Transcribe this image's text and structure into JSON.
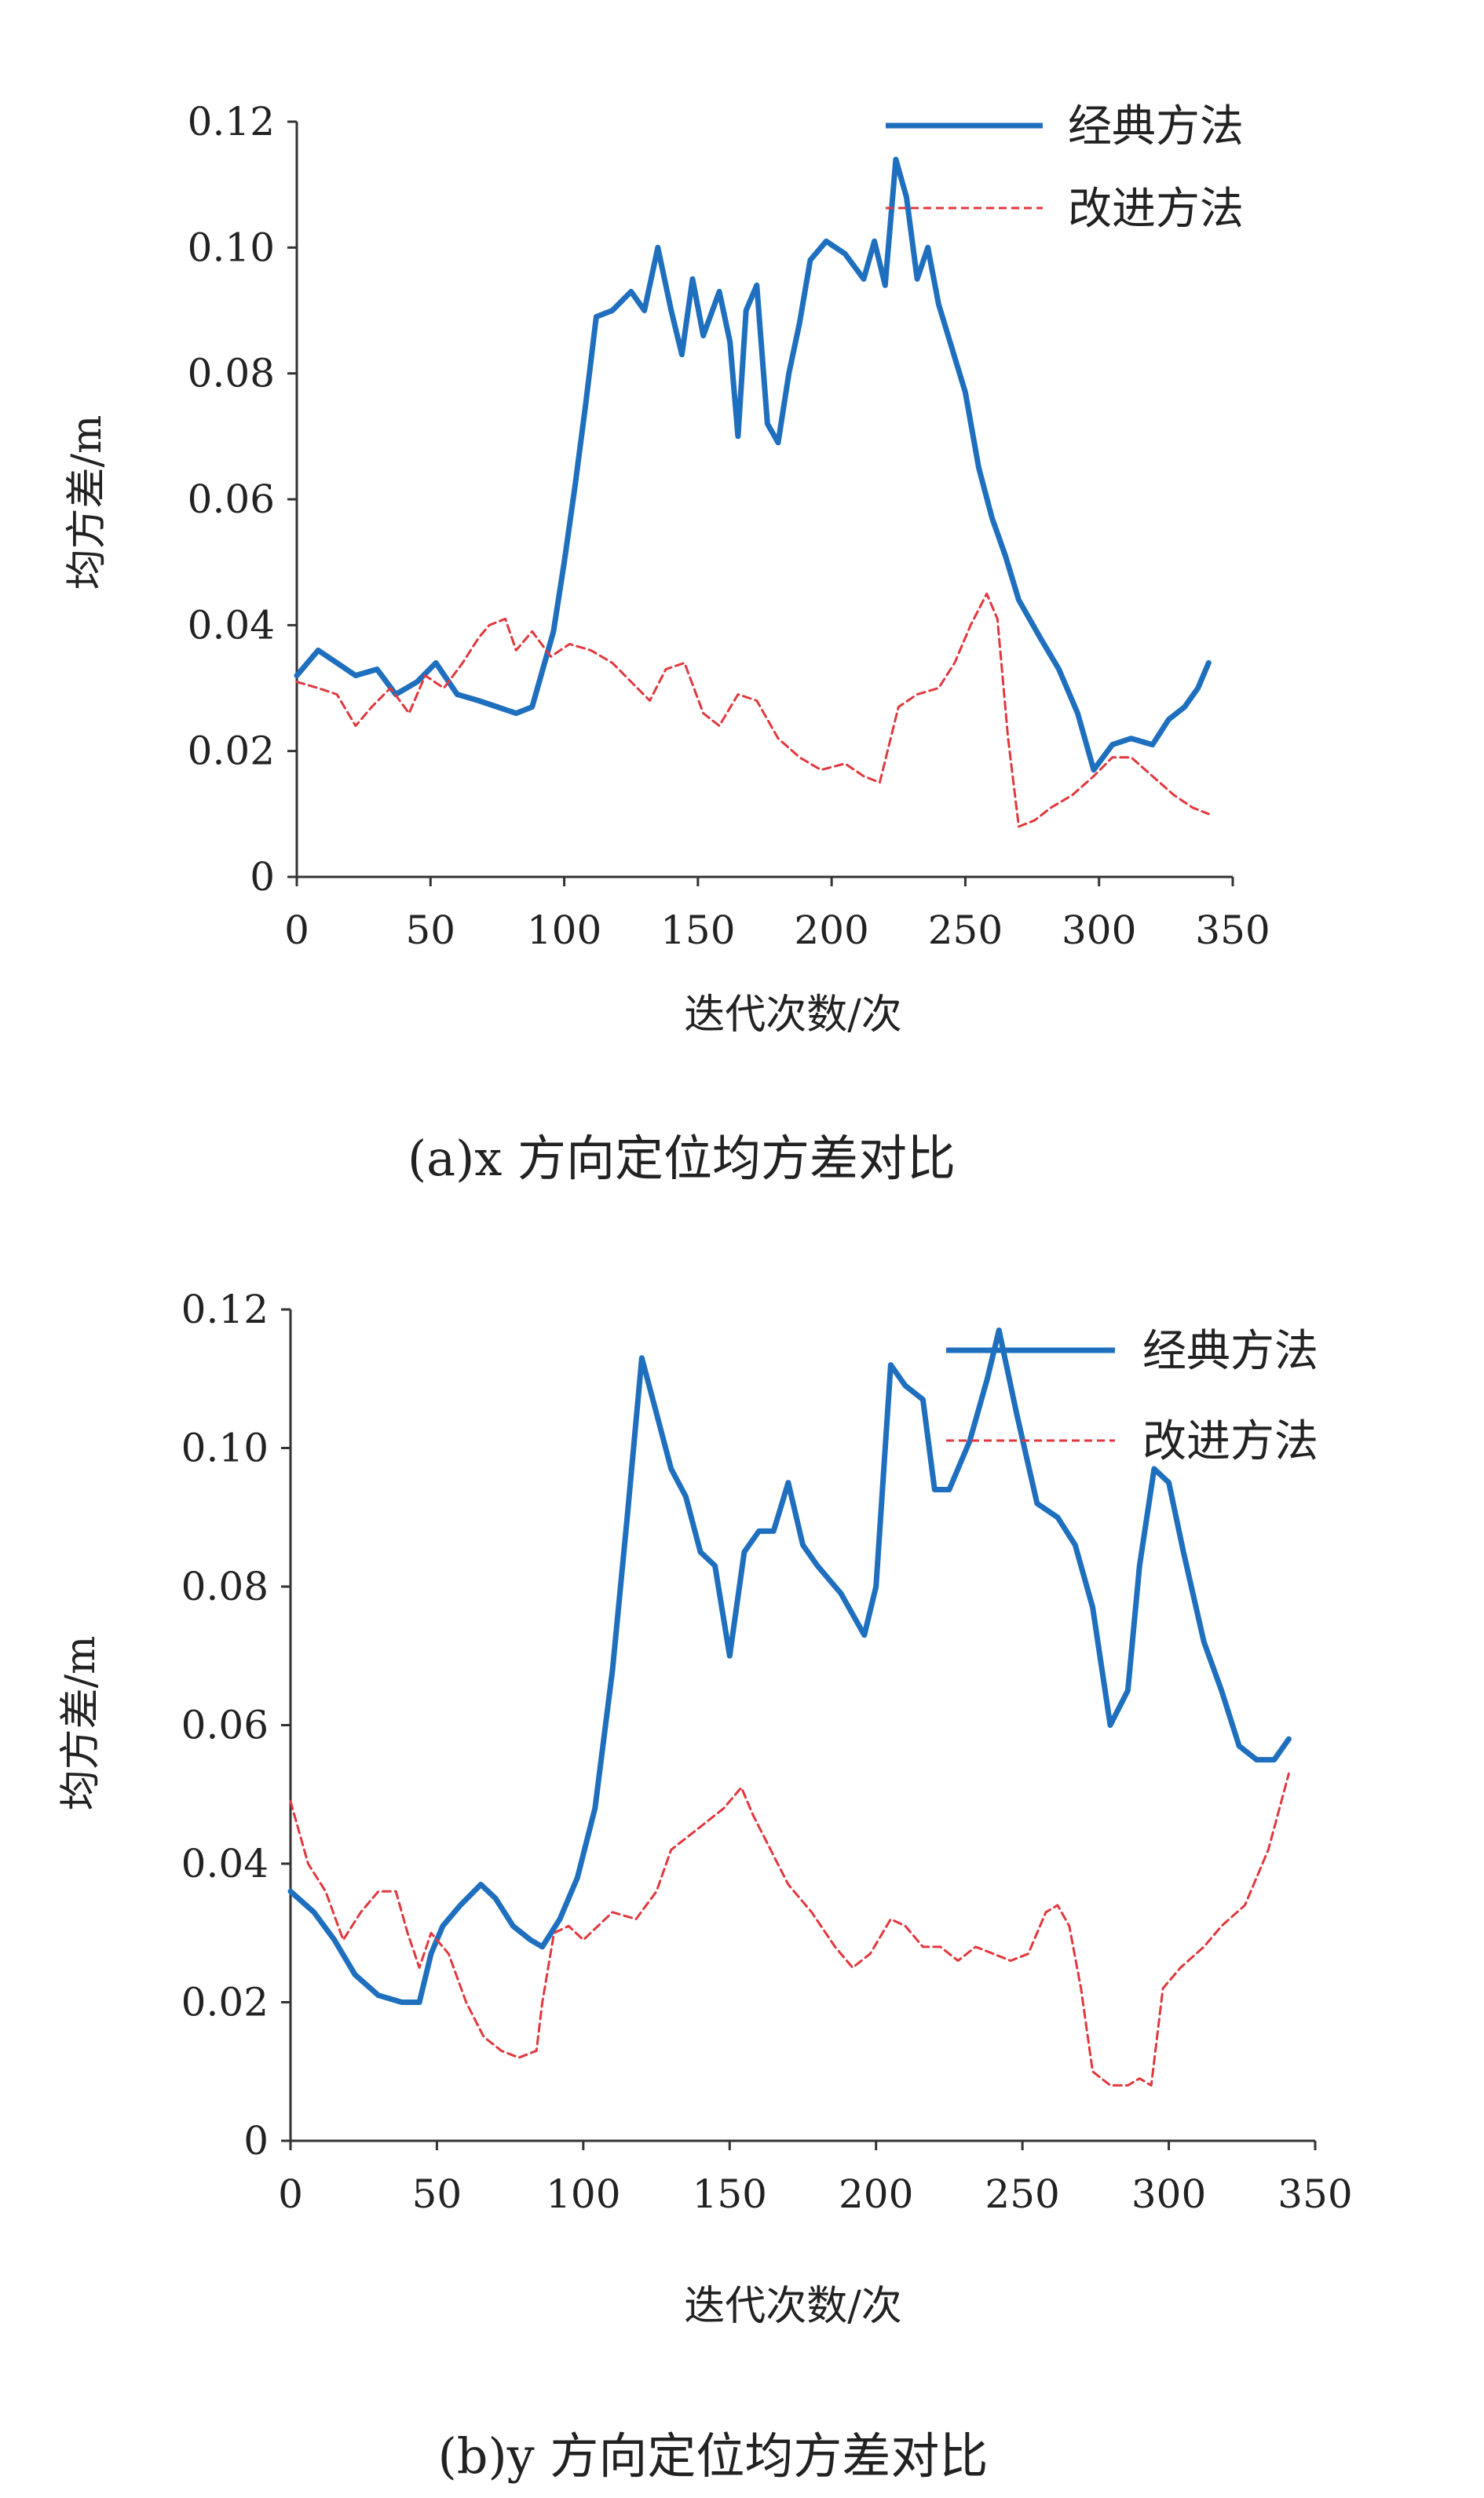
{
  "chart_data": [
    {
      "type": "line",
      "caption": "(a)x 方向定位均方差对比",
      "xlabel": "迭代次数/次",
      "ylabel": "均方差/m",
      "xlim": [
        0,
        350
      ],
      "ylim": [
        0,
        0.12
      ],
      "xticks": [
        0,
        50,
        100,
        150,
        200,
        250,
        300,
        350
      ],
      "xtick_labels": [
        "0",
        "50",
        "100",
        "150",
        "200",
        "250",
        "300",
        "350"
      ],
      "yticks": [
        0,
        0.02,
        0.04,
        0.06,
        0.08,
        0.1,
        0.12
      ],
      "ytick_labels": [
        "0",
        "0.02",
        "0.04",
        "0.06",
        "0.08",
        "0.10",
        "0.12"
      ],
      "legend_position": "top-right",
      "grid": false,
      "series": [
        {
          "name": "经典方法",
          "color": "#1f6fbf",
          "style": "solid",
          "x": [
            0,
            8,
            15,
            22,
            30,
            37,
            45,
            52,
            60,
            68,
            75,
            82,
            88,
            92,
            96,
            100,
            104,
            108,
            112,
            118,
            125,
            130,
            135,
            140,
            144,
            148,
            152,
            158,
            162,
            165,
            168,
            172,
            176,
            180,
            184,
            188,
            192,
            198,
            205,
            212,
            216,
            220,
            224,
            228,
            232,
            236,
            240,
            245,
            250,
            255,
            260,
            265,
            270,
            278,
            285,
            292,
            298,
            305,
            312,
            320,
            326,
            332,
            337,
            341
          ],
          "y": [
            0.032,
            0.036,
            0.034,
            0.032,
            0.033,
            0.029,
            0.031,
            0.034,
            0.029,
            0.028,
            0.027,
            0.026,
            0.027,
            0.033,
            0.039,
            0.05,
            0.062,
            0.075,
            0.089,
            0.09,
            0.093,
            0.09,
            0.1,
            0.09,
            0.083,
            0.095,
            0.086,
            0.093,
            0.085,
            0.07,
            0.09,
            0.094,
            0.072,
            0.069,
            0.08,
            0.088,
            0.098,
            0.101,
            0.099,
            0.095,
            0.101,
            0.094,
            0.114,
            0.108,
            0.095,
            0.1,
            0.091,
            0.084,
            0.077,
            0.065,
            0.057,
            0.051,
            0.044,
            0.038,
            0.033,
            0.026,
            0.017,
            0.021,
            0.022,
            0.021,
            0.025,
            0.027,
            0.03,
            0.034
          ]
        },
        {
          "name": "改进方法",
          "color": "#e0383e",
          "style": "dashed",
          "x": [
            0,
            8,
            15,
            22,
            28,
            35,
            42,
            48,
            55,
            62,
            68,
            72,
            78,
            82,
            88,
            95,
            102,
            110,
            118,
            125,
            132,
            138,
            145,
            152,
            158,
            165,
            172,
            180,
            188,
            196,
            205,
            212,
            218,
            225,
            232,
            240,
            246,
            252,
            258,
            262,
            266,
            270,
            276,
            282,
            290,
            298,
            305,
            312,
            320,
            328,
            335,
            341
          ],
          "y": [
            0.031,
            0.03,
            0.029,
            0.024,
            0.027,
            0.03,
            0.026,
            0.032,
            0.03,
            0.034,
            0.038,
            0.04,
            0.041,
            0.036,
            0.039,
            0.035,
            0.037,
            0.036,
            0.034,
            0.031,
            0.028,
            0.033,
            0.034,
            0.026,
            0.024,
            0.029,
            0.028,
            0.022,
            0.019,
            0.017,
            0.018,
            0.016,
            0.015,
            0.027,
            0.029,
            0.03,
            0.034,
            0.04,
            0.045,
            0.041,
            0.022,
            0.008,
            0.009,
            0.011,
            0.013,
            0.016,
            0.019,
            0.019,
            0.016,
            0.013,
            0.011,
            0.01
          ]
        }
      ]
    },
    {
      "type": "line",
      "caption": "(b)y 方向定位均方差对比",
      "xlabel": "迭代次数/次",
      "ylabel": "均方差/m",
      "xlim": [
        0,
        350
      ],
      "ylim": [
        0,
        0.12
      ],
      "xticks": [
        0,
        50,
        100,
        150,
        200,
        250,
        300,
        350
      ],
      "xtick_labels": [
        "0",
        "50",
        "100",
        "150",
        "200",
        "250",
        "300",
        "350"
      ],
      "yticks": [
        0,
        0.02,
        0.04,
        0.06,
        0.08,
        0.1,
        0.12
      ],
      "ytick_labels": [
        "0",
        "0.02",
        "0.04",
        "0.06",
        "0.08",
        "0.10",
        "0.12"
      ],
      "legend_position": "top-right",
      "grid": false,
      "series": [
        {
          "name": "经典方法",
          "color": "#1f6fbf",
          "style": "solid",
          "x": [
            0,
            8,
            15,
            22,
            30,
            38,
            44,
            48,
            52,
            58,
            65,
            70,
            76,
            82,
            86,
            92,
            98,
            104,
            110,
            115,
            120,
            125,
            130,
            135,
            140,
            145,
            150,
            155,
            160,
            165,
            170,
            175,
            180,
            188,
            196,
            200,
            205,
            210,
            216,
            220,
            225,
            232,
            238,
            242,
            248,
            255,
            262,
            268,
            274,
            280,
            286,
            290,
            295,
            300,
            305,
            312,
            318,
            324,
            330,
            336,
            341
          ],
          "y": [
            0.036,
            0.033,
            0.029,
            0.024,
            0.021,
            0.02,
            0.02,
            0.027,
            0.031,
            0.034,
            0.037,
            0.035,
            0.031,
            0.029,
            0.028,
            0.032,
            0.038,
            0.048,
            0.068,
            0.09,
            0.113,
            0.105,
            0.097,
            0.093,
            0.085,
            0.083,
            0.07,
            0.085,
            0.088,
            0.088,
            0.095,
            0.086,
            0.083,
            0.079,
            0.073,
            0.08,
            0.112,
            0.109,
            0.107,
            0.094,
            0.094,
            0.101,
            0.11,
            0.117,
            0.105,
            0.092,
            0.09,
            0.086,
            0.077,
            0.06,
            0.065,
            0.083,
            0.097,
            0.095,
            0.085,
            0.072,
            0.065,
            0.057,
            0.055,
            0.055,
            0.058
          ]
        },
        {
          "name": "改进方法",
          "color": "#e0383e",
          "style": "dashed",
          "x": [
            0,
            6,
            12,
            18,
            24,
            30,
            36,
            40,
            44,
            48,
            54,
            60,
            66,
            72,
            78,
            84,
            86,
            90,
            95,
            100,
            105,
            110,
            118,
            125,
            130,
            136,
            142,
            148,
            154,
            158,
            164,
            170,
            178,
            186,
            192,
            198,
            205,
            210,
            216,
            222,
            228,
            234,
            240,
            246,
            252,
            258,
            262,
            266,
            270,
            274,
            280,
            286,
            290,
            294,
            298,
            304,
            312,
            318,
            326,
            334,
            341
          ],
          "y": [
            0.049,
            0.04,
            0.036,
            0.029,
            0.033,
            0.036,
            0.036,
            0.03,
            0.025,
            0.03,
            0.027,
            0.02,
            0.015,
            0.013,
            0.012,
            0.013,
            0.02,
            0.03,
            0.031,
            0.029,
            0.031,
            0.033,
            0.032,
            0.036,
            0.042,
            0.044,
            0.046,
            0.048,
            0.051,
            0.047,
            0.042,
            0.037,
            0.033,
            0.028,
            0.025,
            0.027,
            0.032,
            0.031,
            0.028,
            0.028,
            0.026,
            0.028,
            0.027,
            0.026,
            0.027,
            0.033,
            0.034,
            0.031,
            0.022,
            0.01,
            0.008,
            0.008,
            0.009,
            0.008,
            0.022,
            0.025,
            0.028,
            0.031,
            0.034,
            0.042,
            0.053
          ]
        }
      ]
    }
  ]
}
